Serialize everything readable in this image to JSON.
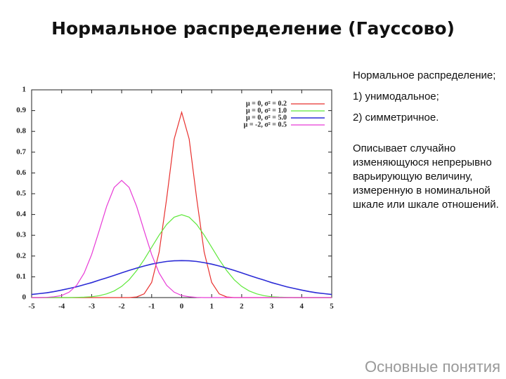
{
  "slide": {
    "title": "Нормальное распределение (Гауссово)",
    "paragraphs": [
      "Нормальное распределение;",
      "1) унимодальное;",
      "2) симметричное.",
      "Описывает случайно изменяющуюся непрерывно варьирующую величину, измеренную в номинальной шкале или шкале отношений."
    ],
    "footer": "Основные понятия"
  },
  "chart_data": {
    "type": "line",
    "x": [
      -5,
      -4.75,
      -4.5,
      -4.25,
      -4,
      -3.75,
      -3.5,
      -3.25,
      -3,
      -2.75,
      -2.5,
      -2.25,
      -2,
      -1.75,
      -1.5,
      -1.25,
      -1,
      -0.75,
      -0.5,
      -0.25,
      0,
      0.25,
      0.5,
      0.75,
      1,
      1.25,
      1.5,
      1.75,
      2,
      2.25,
      2.5,
      2.75,
      3,
      3.25,
      3.5,
      3.75,
      4,
      4.25,
      4.5,
      4.75,
      5
    ],
    "series": [
      {
        "name": "μ = 0, σ² = 0.2",
        "color": "#e8302e",
        "values": [
          0,
          0,
          0,
          0,
          0,
          0,
          0,
          0,
          0,
          0,
          0,
          0,
          0,
          0,
          0.003,
          0.018,
          0.073,
          0.219,
          0.477,
          0.763,
          0.892,
          0.763,
          0.477,
          0.219,
          0.073,
          0.018,
          0.003,
          0,
          0,
          0,
          0,
          0,
          0,
          0,
          0,
          0,
          0,
          0,
          0,
          0,
          0
        ]
      },
      {
        "name": "μ = 0, σ² = 1.0",
        "color": "#5ee83a",
        "values": [
          0,
          0,
          0,
          0,
          0,
          0,
          0.001,
          0.002,
          0.004,
          0.009,
          0.018,
          0.032,
          0.054,
          0.086,
          0.13,
          0.183,
          0.242,
          0.301,
          0.352,
          0.387,
          0.399,
          0.387,
          0.352,
          0.301,
          0.242,
          0.183,
          0.13,
          0.086,
          0.054,
          0.032,
          0.018,
          0.009,
          0.004,
          0.002,
          0.001,
          0,
          0,
          0,
          0,
          0,
          0
        ]
      },
      {
        "name": "μ = 0, σ² = 5.0",
        "color": "#2b2bd6",
        "values": [
          0.015,
          0.019,
          0.023,
          0.029,
          0.036,
          0.044,
          0.052,
          0.062,
          0.072,
          0.084,
          0.095,
          0.107,
          0.119,
          0.131,
          0.142,
          0.152,
          0.161,
          0.168,
          0.174,
          0.177,
          0.178,
          0.177,
          0.174,
          0.168,
          0.161,
          0.152,
          0.142,
          0.131,
          0.119,
          0.107,
          0.095,
          0.084,
          0.072,
          0.062,
          0.052,
          0.044,
          0.036,
          0.029,
          0.023,
          0.019,
          0.015
        ]
      },
      {
        "name": "μ = -2, σ² = 0.5",
        "color": "#e83ad6",
        "values": [
          0,
          0,
          0.001,
          0.004,
          0.01,
          0.026,
          0.059,
          0.118,
          0.207,
          0.321,
          0.439,
          0.53,
          0.564,
          0.53,
          0.439,
          0.321,
          0.207,
          0.118,
          0.059,
          0.026,
          0.01,
          0.004,
          0.001,
          0,
          0,
          0,
          0,
          0,
          0,
          0,
          0,
          0,
          0,
          0,
          0,
          0,
          0,
          0,
          0,
          0,
          0
        ]
      }
    ],
    "xlim": [
      -5,
      5
    ],
    "xticks": [
      -5,
      -4,
      -3,
      -2,
      -1,
      0,
      1,
      2,
      3,
      4,
      5
    ],
    "ylim": [
      0,
      1
    ],
    "yticks": [
      0,
      0.1,
      0.2,
      0.3,
      0.4,
      0.5,
      0.6,
      0.7,
      0.8,
      0.9,
      1
    ],
    "grid": false,
    "legend": "top-right"
  }
}
